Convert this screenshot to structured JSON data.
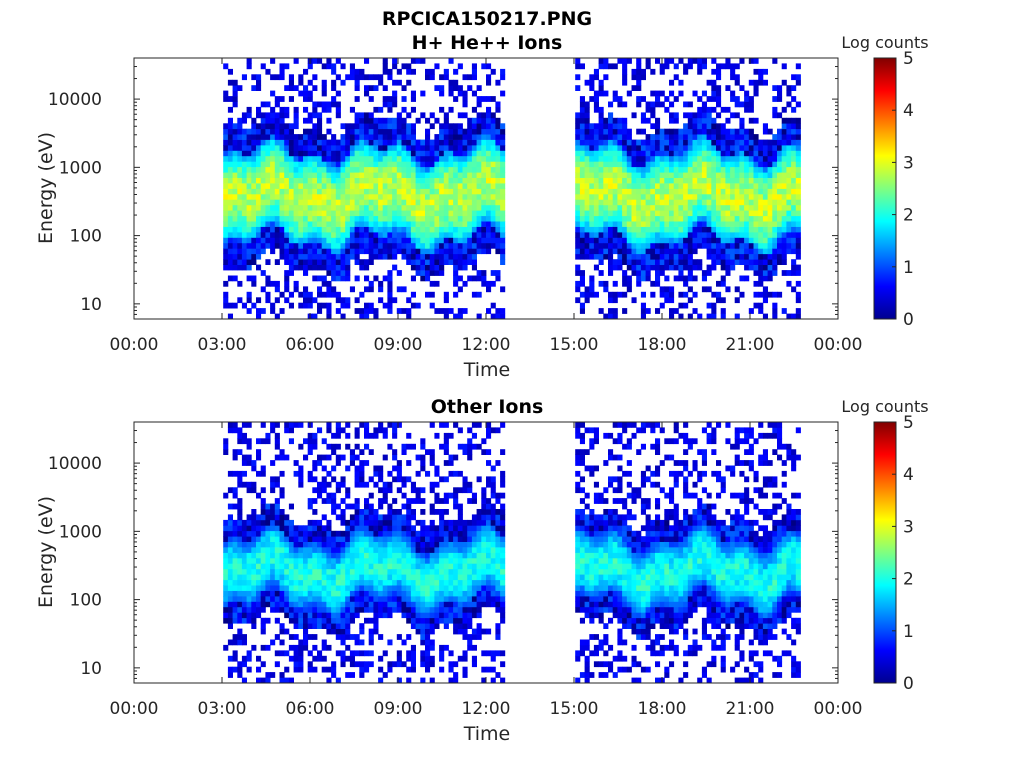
{
  "figure": {
    "filename_title": "RPCICA150217.PNG"
  },
  "chart_data": [
    {
      "type": "heatmap",
      "title": "H+ He++ Ions",
      "xlabel": "Time",
      "ylabel": "Energy (eV)",
      "x_tick_labels": [
        "00:00",
        "03:00",
        "06:00",
        "09:00",
        "12:00",
        "15:00",
        "18:00",
        "21:00",
        "00:00"
      ],
      "x_ticks_hours": [
        0,
        3,
        6,
        9,
        12,
        15,
        18,
        21,
        24
      ],
      "xlim_hours": [
        0,
        24
      ],
      "y_scale": "log",
      "y_tick_labels": [
        "10",
        "100",
        "1000",
        "10000"
      ],
      "y_ticks": [
        10,
        100,
        1000,
        10000
      ],
      "ylim": [
        6,
        40000
      ],
      "colorbar": {
        "label": "Log counts",
        "ticks": [
          0,
          1,
          2,
          3,
          4,
          5
        ],
        "range": [
          0,
          5
        ],
        "colormap": "jet"
      },
      "data_intervals_hours": [
        [
          3.0,
          12.6
        ],
        [
          15.0,
          22.7
        ]
      ],
      "core_energy_band_eV": [
        100,
        1500
      ],
      "peak_log_counts": 3.2
    },
    {
      "type": "heatmap",
      "title": "Other Ions",
      "xlabel": "Time",
      "ylabel": "Energy (eV)",
      "x_tick_labels": [
        "00:00",
        "03:00",
        "06:00",
        "09:00",
        "12:00",
        "15:00",
        "18:00",
        "21:00",
        "00:00"
      ],
      "x_ticks_hours": [
        0,
        3,
        6,
        9,
        12,
        15,
        18,
        21,
        24
      ],
      "xlim_hours": [
        0,
        24
      ],
      "y_scale": "log",
      "y_tick_labels": [
        "10",
        "100",
        "1000",
        "10000"
      ],
      "y_ticks": [
        10,
        100,
        1000,
        10000
      ],
      "ylim": [
        6,
        40000
      ],
      "colorbar": {
        "label": "Log counts",
        "ticks": [
          0,
          1,
          2,
          3,
          4,
          5
        ],
        "range": [
          0,
          5
        ],
        "colormap": "jet"
      },
      "data_intervals_hours": [
        [
          3.0,
          12.6
        ],
        [
          15.0,
          22.7
        ]
      ],
      "core_energy_band_eV": [
        100,
        700
      ],
      "peak_log_counts": 2.3
    }
  ]
}
